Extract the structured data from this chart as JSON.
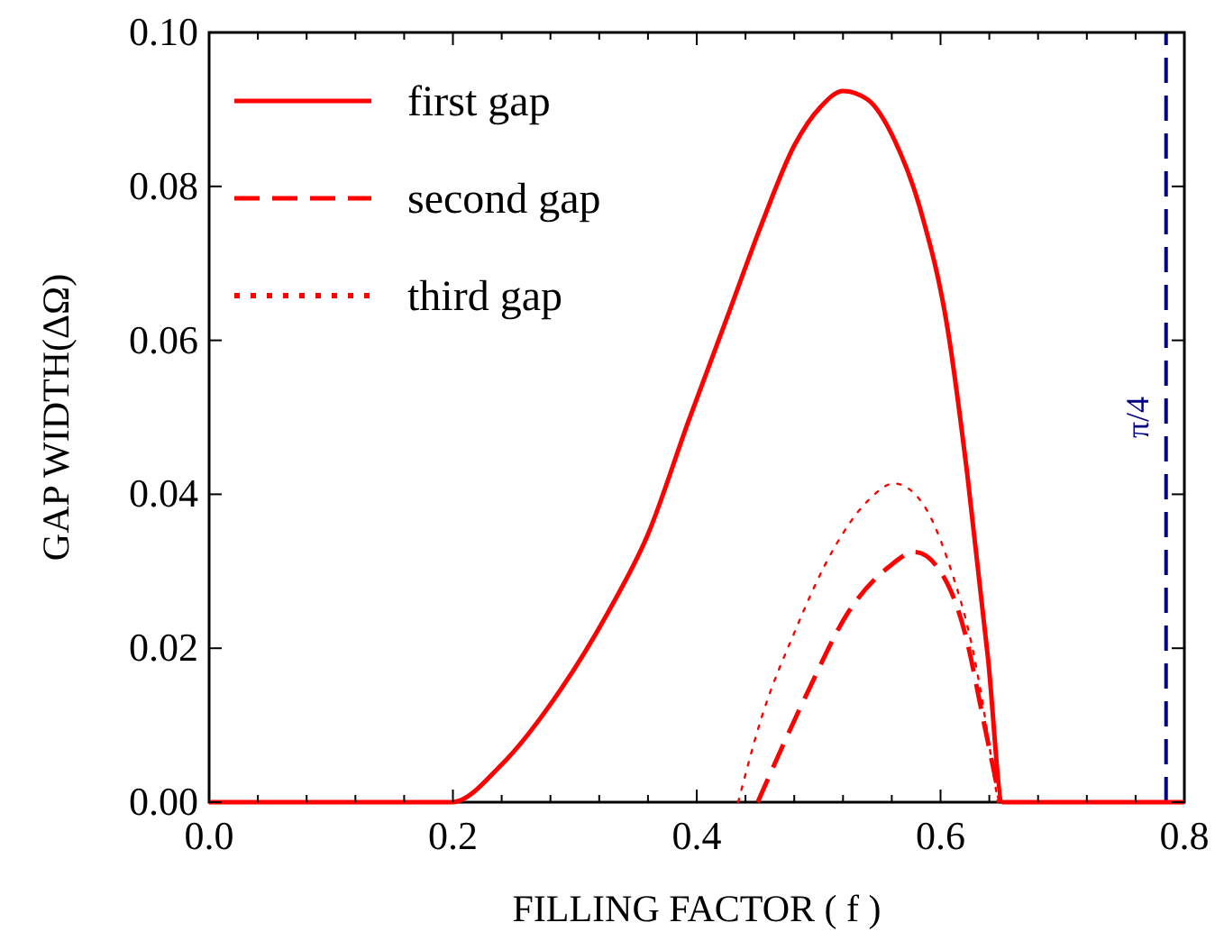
{
  "chart_data": {
    "type": "line",
    "xlabel": "FILLING FACTOR ( f )",
    "ylabel": "GAP WIDTH(ΔΩ)",
    "xlim": [
      0,
      0.8
    ],
    "ylim": [
      0,
      0.1
    ],
    "xticks": [
      {
        "value": 0,
        "label": "0.0"
      },
      {
        "value": 0.04,
        "label": null
      },
      {
        "value": 0.08,
        "label": null
      },
      {
        "value": 0.12,
        "label": null
      },
      {
        "value": 0.16,
        "label": null
      },
      {
        "value": 0.2,
        "label": "0.2"
      },
      {
        "value": 0.24,
        "label": null
      },
      {
        "value": 0.28,
        "label": null
      },
      {
        "value": 0.32,
        "label": null
      },
      {
        "value": 0.36,
        "label": null
      },
      {
        "value": 0.4,
        "label": "0.4"
      },
      {
        "value": 0.44,
        "label": null
      },
      {
        "value": 0.48,
        "label": null
      },
      {
        "value": 0.52,
        "label": null
      },
      {
        "value": 0.56,
        "label": null
      },
      {
        "value": 0.6,
        "label": "0.6"
      },
      {
        "value": 0.64,
        "label": null
      },
      {
        "value": 0.68,
        "label": null
      },
      {
        "value": 0.72,
        "label": null
      },
      {
        "value": 0.76,
        "label": null
      },
      {
        "value": 0.8,
        "label": "0.8"
      }
    ],
    "yticks": [
      {
        "value": 0,
        "label": "0.00"
      },
      {
        "value": 0.02,
        "label": "0.02"
      },
      {
        "value": 0.04,
        "label": "0.04"
      },
      {
        "value": 0.06,
        "label": "0.06"
      },
      {
        "value": 0.08,
        "label": "0.08"
      },
      {
        "value": 0.1,
        "label": "0.10"
      }
    ],
    "grid": false,
    "legend": "top left",
    "marker": "none",
    "series": [
      {
        "name": "first gap",
        "color": "#ff0000",
        "line_style": "solid",
        "x": [
          0,
          0.199,
          0.24,
          0.283,
          0.327,
          0.36,
          0.393,
          0.425,
          0.453,
          0.48,
          0.502,
          0.52,
          0.54,
          0.562,
          0.584,
          0.606,
          0.622,
          0.639,
          0.651,
          0.8
        ],
        "values": [
          0,
          0,
          0.0049,
          0.0134,
          0.0246,
          0.0348,
          0.0494,
          0.063,
          0.075,
          0.0853,
          0.0904,
          0.0924,
          0.0913,
          0.0861,
          0.0767,
          0.0613,
          0.0425,
          0.0186,
          0,
          0
        ]
      },
      {
        "name": "second gap",
        "color": "#ff0000",
        "line_style": "dashed",
        "x": [
          0.45,
          0.491,
          0.524,
          0.557,
          0.579,
          0.601,
          0.62,
          0.636,
          0.649
        ],
        "values": [
          0,
          0.0143,
          0.0246,
          0.0305,
          0.0325,
          0.0297,
          0.022,
          0.01,
          0
        ]
      },
      {
        "name": "third gap",
        "color": "#ff0000",
        "line_style": "dotted",
        "x": [
          0.434,
          0.453,
          0.48,
          0.513,
          0.54,
          0.562,
          0.584,
          0.606,
          0.628,
          0.647
        ],
        "values": [
          0,
          0.0109,
          0.022,
          0.0331,
          0.0391,
          0.0414,
          0.0391,
          0.0314,
          0.0186,
          0
        ]
      }
    ],
    "ref_lines": [
      {
        "axis": "x",
        "value": 0.785,
        "label": "π/4",
        "color": "#000080",
        "line_style": "dashed"
      }
    ]
  }
}
